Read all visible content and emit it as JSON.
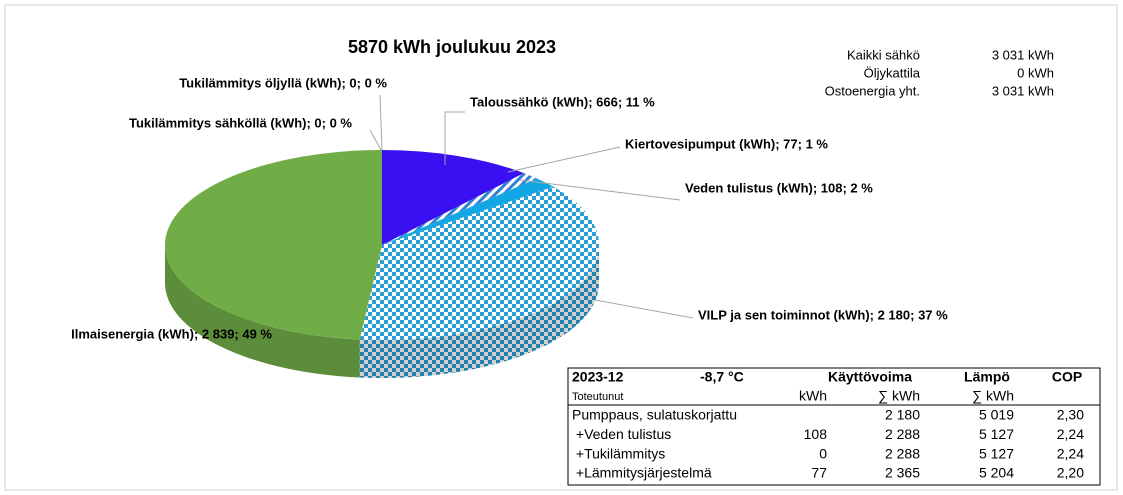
{
  "chart_data": {
    "type": "pie",
    "title": "5870  kWh joulukuu 2023",
    "values": [
      666,
      77,
      108,
      2180,
      2839,
      0,
      0
    ],
    "value_labels": [
      "Taloussähkö (kWh); 666; 11 %",
      "Kiertovesipumput (kWh); 77; 1 %",
      "Veden tulistus (kWh); 108; 2 %",
      "VILP ja sen toiminnot (kWh); 2 180; 37 %",
      "Ilmaisenergia (kWh); 2 839; 49 %",
      "Tukilämmitys sähköllä (kWh); 0; 0 %",
      "Tukilämmitys öljyllä (kWh); 0; 0 %"
    ],
    "colors": [
      "#3a10f2",
      "#2e7fd0",
      "#12a6e4",
      "#2a9fd6",
      "#70ad47",
      "#a5a5a5",
      "#7f7f7f"
    ],
    "patterns": [
      "solid",
      "stripes",
      "solid",
      "checker",
      "solid",
      "solid",
      "solid"
    ]
  },
  "summary": {
    "rows": [
      [
        "Kaikki sähkö",
        "3 031 kWh"
      ],
      [
        "Öljykattila",
        "0 kWh"
      ],
      [
        "Ostoenergia yht.",
        "3 031 kWh"
      ]
    ]
  },
  "table": {
    "header": [
      "2023-12",
      "-8,7  °C",
      "Käyttövoima",
      "Lämpö",
      "COP"
    ],
    "subheader": [
      "Toteutunut",
      "kWh",
      "∑ kWh",
      "∑ kWh",
      null
    ],
    "rows": [
      [
        "Pumppaus, sulatuskorjattu",
        null,
        "2 180",
        "5 019",
        "2,30"
      ],
      [
        " +Veden tulistus",
        "108",
        "2 288",
        "5 127",
        "2,24"
      ],
      [
        " +Tukilämmitys",
        "0",
        "2 288",
        "5 127",
        "2,24"
      ],
      [
        " +Lämmitysjärjestelmä",
        "77",
        "2 365",
        "5 204",
        "2,20"
      ]
    ]
  }
}
